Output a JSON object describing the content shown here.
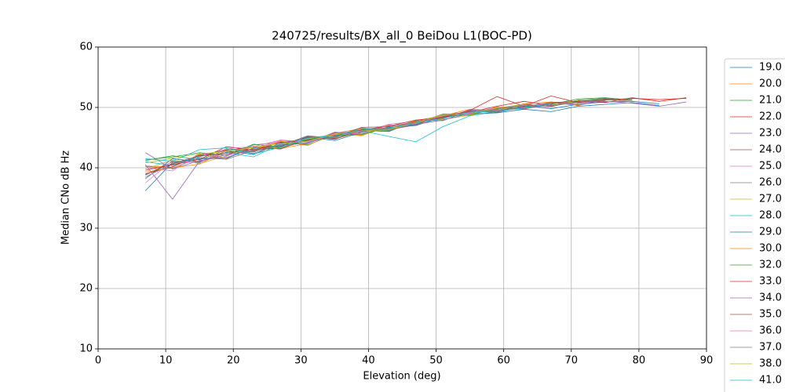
{
  "chart_data": {
    "type": "line",
    "title": "240725/results/BX_all_0 BeiDou L1(BOC-PD)",
    "xlabel": "Elevation (deg)",
    "ylabel": "Median CNo dB Hz",
    "xlim": [
      0,
      90
    ],
    "ylim": [
      10,
      60
    ],
    "xticks": [
      0,
      10,
      20,
      30,
      40,
      50,
      60,
      70,
      80,
      90
    ],
    "yticks": [
      10,
      20,
      30,
      40,
      50,
      60
    ],
    "grid": true,
    "legend": "outside-right",
    "x": [
      7,
      11,
      15,
      19,
      23,
      27,
      31,
      35,
      39,
      43,
      47,
      51,
      55,
      59,
      63,
      67,
      71,
      75,
      79,
      83,
      87
    ],
    "series": [
      {
        "name": "19.0",
        "color": "#1f77b4",
        "values": [
          38.2,
          41.5,
          41.0,
          42.8,
          42.2,
          44.1,
          44.9,
          45.3,
          46.2,
          46.0,
          47.8,
          48.6,
          49.3,
          49.2,
          50.3,
          49.8,
          50.5,
          50.9,
          51.0,
          50.6,
          null
        ]
      },
      {
        "name": "20.0",
        "color": "#ff7f0e",
        "values": [
          40.3,
          40.1,
          42.2,
          41.5,
          43.6,
          43.2,
          44.0,
          45.8,
          45.4,
          47.1,
          47.0,
          48.9,
          48.6,
          50.1,
          49.7,
          50.9,
          50.3,
          51.4,
          null,
          null,
          null
        ]
      },
      {
        "name": "21.0",
        "color": "#2ca02c",
        "values": [
          41.2,
          42.0,
          41.3,
          43.0,
          42.6,
          44.3,
          43.8,
          45.5,
          46.3,
          46.1,
          47.9,
          47.8,
          49.5,
          49.3,
          50.6,
          50.1,
          51.2,
          51.5,
          51.3,
          null,
          null
        ]
      },
      {
        "name": "22.0",
        "color": "#d62728",
        "values": [
          39.0,
          40.2,
          42.1,
          42.9,
          43.4,
          43.1,
          45.0,
          44.8,
          46.0,
          47.0,
          47.2,
          48.8,
          49.2,
          50.2,
          51.0,
          50.3,
          51.1,
          50.8,
          51.6,
          51.0,
          51.6
        ]
      },
      {
        "name": "23.0",
        "color": "#9467bd",
        "values": [
          42.5,
          39.8,
          41.2,
          41.9,
          43.8,
          44.2,
          44.1,
          45.9,
          45.5,
          46.8,
          47.5,
          48.1,
          49.6,
          49.4,
          50.2,
          50.8,
          50.4,
          51.2,
          null,
          null,
          null
        ]
      },
      {
        "name": "24.0",
        "color": "#8c564b",
        "values": [
          38.8,
          41.0,
          40.9,
          42.6,
          42.8,
          43.5,
          45.2,
          44.7,
          46.4,
          46.3,
          47.1,
          48.7,
          48.8,
          50.0,
          49.8,
          50.6,
          51.0,
          null,
          null,
          null,
          null
        ]
      },
      {
        "name": "25.0",
        "color": "#e377c2",
        "values": [
          40.0,
          39.5,
          42.4,
          41.7,
          43.2,
          44.5,
          44.3,
          45.4,
          45.9,
          47.2,
          47.7,
          48.2,
          49.1,
          49.8,
          50.4,
          50.1,
          null,
          null,
          null,
          null,
          null
        ]
      },
      {
        "name": "26.0",
        "color": "#7f7f7f",
        "values": [
          38.5,
          40.6,
          41.8,
          43.1,
          42.4,
          43.9,
          44.6,
          45.0,
          46.6,
          46.2,
          47.3,
          48.5,
          49.4,
          49.5,
          50.1,
          50.7,
          50.9,
          51.3,
          51.0,
          null,
          null
        ]
      },
      {
        "name": "27.0",
        "color": "#bcbd22",
        "values": [
          39.8,
          41.3,
          40.7,
          42.0,
          43.5,
          43.3,
          44.8,
          45.6,
          45.3,
          46.9,
          47.6,
          48.0,
          48.7,
          49.9,
          50.5,
          50.2,
          51.1,
          null,
          null,
          null,
          null
        ]
      },
      {
        "name": "28.0",
        "color": "#17becf",
        "values": [
          41.0,
          40.4,
          41.9,
          42.5,
          41.8,
          44.0,
          44.2,
          45.2,
          46.1,
          45.2,
          44.3,
          46.8,
          48.6,
          49.3,
          50.0,
          50.6,
          null,
          null,
          null,
          null,
          null
        ]
      },
      {
        "name": "29.0",
        "color": "#1f77b4",
        "values": [
          36.2,
          40.9,
          41.5,
          41.6,
          43.3,
          43.6,
          45.1,
          44.5,
          45.9,
          46.7,
          47.0,
          48.4,
          48.9,
          49.1,
          49.7,
          49.3,
          50.2,
          50.5,
          50.8,
          50.3,
          null
        ]
      },
      {
        "name": "30.0",
        "color": "#ff7f0e",
        "values": [
          39.3,
          40.0,
          40.6,
          42.9,
          43.0,
          44.4,
          43.7,
          45.7,
          46.5,
          46.4,
          47.8,
          48.6,
          49.7,
          49.5,
          50.6,
          50.9,
          50.6,
          null,
          null,
          null,
          null
        ]
      },
      {
        "name": "32.0",
        "color": "#2ca02c",
        "values": [
          41.3,
          41.8,
          42.5,
          42.1,
          43.9,
          43.4,
          44.7,
          45.3,
          45.6,
          46.6,
          47.4,
          48.9,
          48.8,
          49.8,
          50.3,
          50.5,
          51.4,
          51.6,
          51.2,
          null,
          null
        ]
      },
      {
        "name": "33.0",
        "color": "#d62728",
        "values": [
          39.6,
          40.5,
          41.4,
          43.5,
          42.9,
          44.2,
          44.5,
          45.4,
          46.3,
          46.9,
          47.9,
          48.3,
          49.5,
          51.8,
          50.2,
          51.9,
          50.8,
          51.2,
          51.5,
          51.3,
          51.5
        ]
      },
      {
        "name": "34.0",
        "color": "#9467bd",
        "values": [
          40.5,
          34.8,
          41.1,
          42.2,
          42.7,
          43.8,
          44.0,
          45.8,
          46.0,
          46.4,
          47.2,
          47.9,
          49.0,
          49.6,
          49.8,
          50.4,
          50.7,
          51.0,
          50.7,
          50.2,
          50.9
        ]
      },
      {
        "name": "35.0",
        "color": "#8c564b",
        "values": [
          38.9,
          40.7,
          42.0,
          42.4,
          43.1,
          43.2,
          44.6,
          45.1,
          46.7,
          46.8,
          47.6,
          48.4,
          49.3,
          49.2,
          50.1,
          50.8,
          51.0,
          51.4,
          51.2,
          null,
          null
        ]
      },
      {
        "name": "36.0",
        "color": "#e377c2",
        "values": [
          37.5,
          41.2,
          40.8,
          43.2,
          43.5,
          44.6,
          44.3,
          45.5,
          45.7,
          47.0,
          47.3,
          48.7,
          49.1,
          50.0,
          50.3,
          50.6,
          null,
          null,
          null,
          null,
          null
        ]
      },
      {
        "name": "37.0",
        "color": "#7f7f7f",
        "values": [
          40.2,
          39.9,
          41.7,
          41.4,
          42.9,
          43.7,
          45.3,
          44.9,
          46.2,
          46.5,
          47.7,
          48.1,
          49.4,
          49.7,
          50.4,
          50.2,
          50.9,
          51.1,
          null,
          null,
          null
        ]
      },
      {
        "name": "38.0",
        "color": "#bcbd22",
        "values": [
          40.8,
          41.6,
          42.3,
          42.7,
          43.4,
          44.0,
          44.4,
          45.6,
          46.1,
          46.3,
          47.5,
          48.8,
          48.9,
          49.9,
          50.5,
          null,
          null,
          null,
          null,
          null,
          null
        ]
      },
      {
        "name": "41.0",
        "color": "#17becf",
        "values": [
          41.5,
          41.1,
          43.0,
          43.3,
          42.3,
          43.4,
          44.9,
          45.3,
          46.4,
          46.6,
          47.4,
          48.2,
          49.2,
          49.4,
          49.9,
          50.7,
          null,
          null,
          null,
          null,
          null
        ]
      }
    ]
  }
}
